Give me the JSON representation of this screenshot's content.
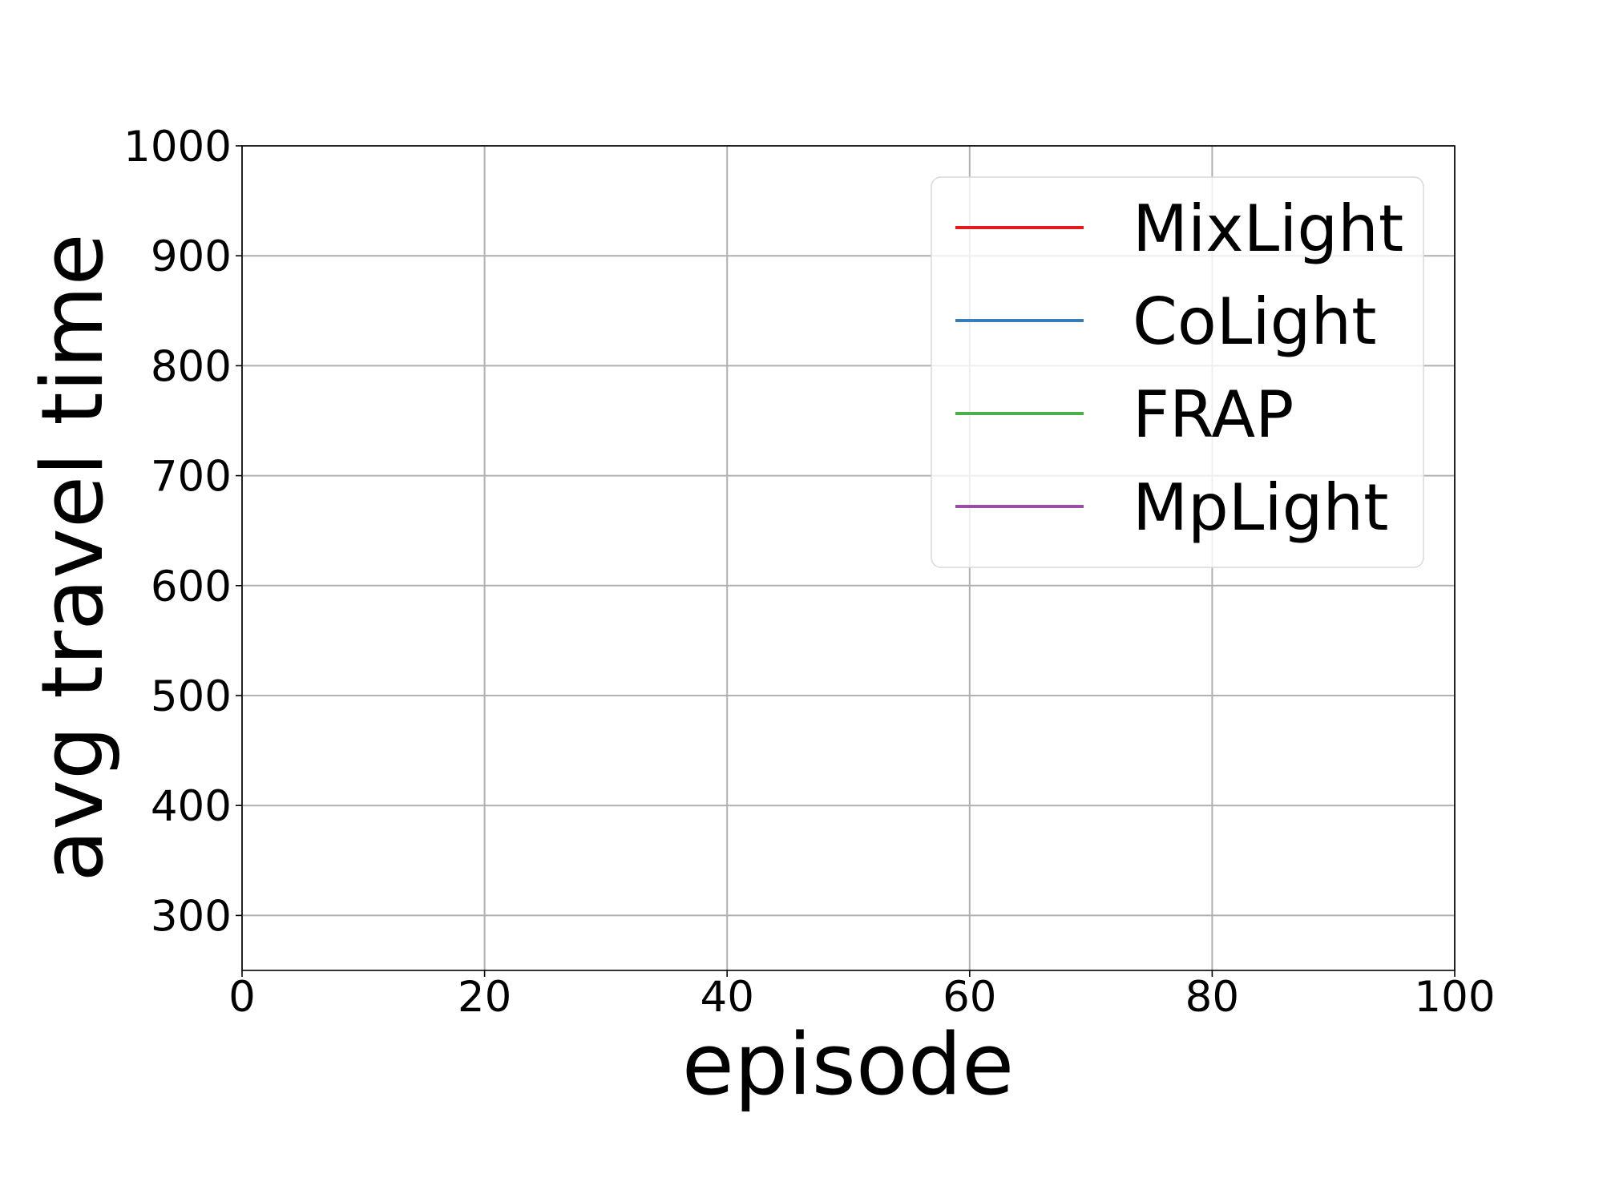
{
  "chart_data": {
    "type": "line",
    "xlabel": "episode",
    "ylabel": "avg travel time",
    "xlim": [
      0,
      100
    ],
    "ylim": [
      250,
      1000
    ],
    "x_ticks": [
      0,
      20,
      40,
      60,
      80,
      100
    ],
    "y_ticks": [
      300,
      400,
      500,
      600,
      700,
      800,
      900,
      1000
    ],
    "x_tick_labels": [
      "0",
      "20",
      "40",
      "60",
      "80",
      "100"
    ],
    "y_tick_labels": [
      "300",
      "400",
      "500",
      "600",
      "700",
      "800",
      "900",
      "1000"
    ],
    "grid": true,
    "legend_position": "top-right",
    "series": [
      {
        "name": "MixLight",
        "color": "#e41a1c",
        "x": [],
        "y": []
      },
      {
        "name": "CoLight",
        "color": "#377eb8",
        "x": [],
        "y": []
      },
      {
        "name": "FRAP",
        "color": "#4daf4a",
        "x": [],
        "y": []
      },
      {
        "name": "MpLight",
        "color": "#984ea3",
        "x": [],
        "y": []
      }
    ]
  }
}
